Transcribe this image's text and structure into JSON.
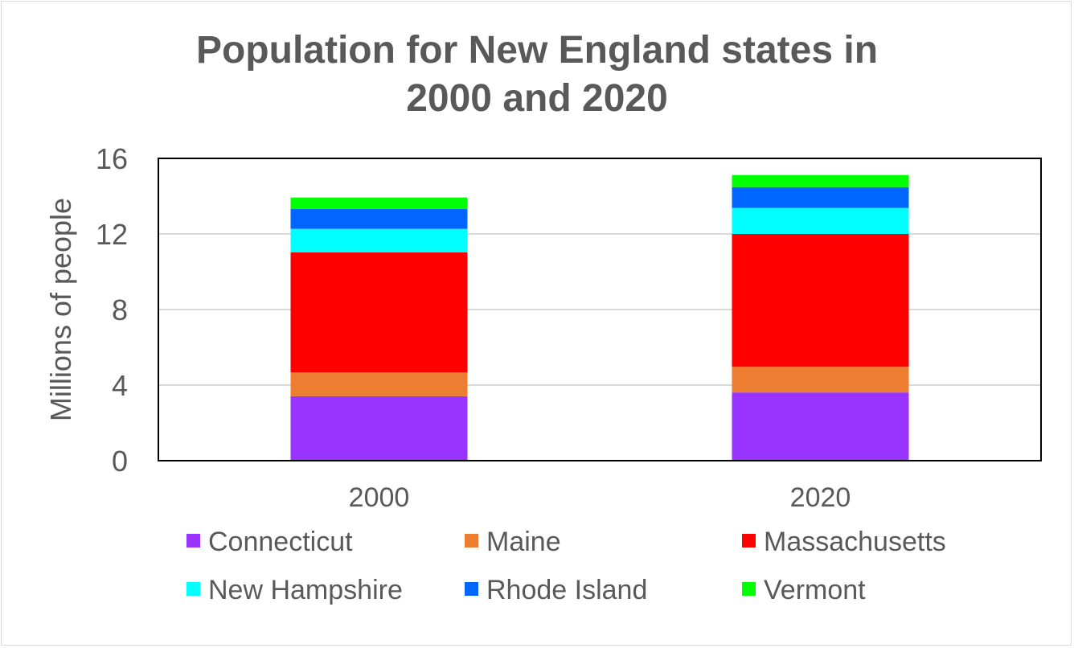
{
  "chart_data": {
    "type": "bar",
    "stacked": true,
    "title": "Population for New England states in 2000 and 2020",
    "title_lines": [
      "Population for New England states in",
      "2000 and 2020"
    ],
    "xlabel": "",
    "ylabel": "Millions of people",
    "ylim": [
      0,
      16
    ],
    "yticks": [
      0,
      4,
      8,
      12,
      16
    ],
    "grid": true,
    "legend_position": "bottom",
    "categories": [
      "2000",
      "2020"
    ],
    "series": [
      {
        "name": "Connecticut",
        "color": "#9933ff",
        "values": [
          3.41,
          3.61
        ]
      },
      {
        "name": "Maine",
        "color": "#ed7d31",
        "values": [
          1.27,
          1.36
        ]
      },
      {
        "name": "Massachusetts",
        "color": "#ff0000",
        "values": [
          6.35,
          7.03
        ]
      },
      {
        "name": "New Hampshire",
        "color": "#00ffff",
        "values": [
          1.24,
          1.38
        ]
      },
      {
        "name": "Rhode Island",
        "color": "#0066ff",
        "values": [
          1.05,
          1.1
        ]
      },
      {
        "name": "Vermont",
        "color": "#00ff00",
        "values": [
          0.61,
          0.64
        ]
      }
    ]
  }
}
